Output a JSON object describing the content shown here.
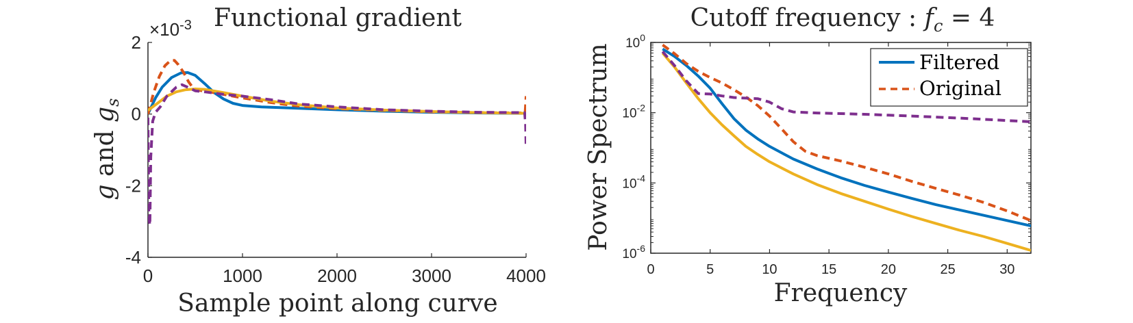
{
  "chart_data": [
    {
      "type": "line",
      "title": "Functional gradient",
      "xlabel": "Sample point along curve",
      "ylabel": "g and g_s",
      "y_exponent_label": "×10",
      "y_exponent_power": "-3",
      "xlim": [
        0,
        4000
      ],
      "ylim": [
        -4,
        2
      ],
      "x_ticks": [
        0,
        1000,
        2000,
        3000,
        4000
      ],
      "x_tick_labels": [
        "0",
        "1000",
        "2000",
        "3000",
        "4000"
      ],
      "y_ticks": [
        -4,
        -2,
        0,
        2
      ],
      "y_tick_labels": [
        "-4",
        "-2",
        "0",
        "2"
      ],
      "grid": false,
      "series": [
        {
          "color": "#0072BD",
          "style": "solid",
          "points": [
            [
              0,
              0.0
            ],
            [
              80,
              0.45
            ],
            [
              150,
              0.75
            ],
            [
              250,
              1.02
            ],
            [
              350,
              1.15
            ],
            [
              420,
              1.16
            ],
            [
              500,
              1.08
            ],
            [
              600,
              0.85
            ],
            [
              700,
              0.6
            ],
            [
              800,
              0.42
            ],
            [
              900,
              0.3
            ],
            [
              1000,
              0.24
            ],
            [
              1200,
              0.2
            ],
            [
              1500,
              0.17
            ],
            [
              2000,
              0.12
            ],
            [
              2500,
              0.08
            ],
            [
              3000,
              0.05
            ],
            [
              3500,
              0.03
            ],
            [
              4000,
              0.02
            ]
          ]
        },
        {
          "color": "#D95319",
          "style": "dashed",
          "points": [
            [
              0,
              0.0
            ],
            [
              60,
              0.6
            ],
            [
              120,
              1.05
            ],
            [
              180,
              1.35
            ],
            [
              240,
              1.5
            ],
            [
              280,
              1.5
            ],
            [
              320,
              1.38
            ],
            [
              380,
              1.15
            ],
            [
              430,
              0.9
            ],
            [
              480,
              0.72
            ],
            [
              550,
              0.66
            ],
            [
              650,
              0.62
            ],
            [
              800,
              0.55
            ],
            [
              1000,
              0.45
            ],
            [
              1300,
              0.32
            ],
            [
              1600,
              0.22
            ],
            [
              2000,
              0.15
            ],
            [
              2500,
              0.1
            ],
            [
              3000,
              0.06
            ],
            [
              3500,
              0.04
            ],
            [
              3990,
              0.03
            ],
            [
              4000,
              0.5
            ]
          ]
        },
        {
          "color": "#EDB120",
          "style": "solid",
          "points": [
            [
              0,
              0.1
            ],
            [
              100,
              0.3
            ],
            [
              200,
              0.5
            ],
            [
              300,
              0.62
            ],
            [
              400,
              0.68
            ],
            [
              500,
              0.7
            ],
            [
              600,
              0.69
            ],
            [
              800,
              0.6
            ],
            [
              1000,
              0.5
            ],
            [
              1300,
              0.36
            ],
            [
              1600,
              0.26
            ],
            [
              2000,
              0.17
            ],
            [
              2500,
              0.11
            ],
            [
              3000,
              0.07
            ],
            [
              3500,
              0.04
            ],
            [
              4000,
              0.02
            ]
          ]
        },
        {
          "color": "#7E2F8E",
          "style": "dashed",
          "points": [
            [
              0,
              -0.1
            ],
            [
              10,
              -2.9
            ],
            [
              20,
              -3.1
            ],
            [
              30,
              -1.2
            ],
            [
              50,
              -0.2
            ],
            [
              80,
              0.05
            ],
            [
              130,
              0.2
            ],
            [
              200,
              0.5
            ],
            [
              300,
              0.75
            ],
            [
              360,
              0.82
            ],
            [
              420,
              0.75
            ],
            [
              500,
              0.65
            ],
            [
              600,
              0.62
            ],
            [
              800,
              0.55
            ],
            [
              1000,
              0.5
            ],
            [
              1300,
              0.4
            ],
            [
              1600,
              0.28
            ],
            [
              2000,
              0.2
            ],
            [
              2500,
              0.12
            ],
            [
              3000,
              0.08
            ],
            [
              3500,
              0.05
            ],
            [
              3985,
              0.04
            ],
            [
              3995,
              -0.3
            ],
            [
              4000,
              -0.9
            ]
          ]
        }
      ]
    },
    {
      "type": "line",
      "title": "Cutoff frequency : f_c = 4",
      "title_text": "Cutoff frequency :",
      "title_math_f": "f",
      "title_math_sub": "c",
      "title_math_rest": " = 4",
      "xlabel": "Frequency",
      "ylabel": "Power Spectrum",
      "xlim": [
        0,
        32
      ],
      "ylim": [
        1e-06,
        1
      ],
      "y_scale": "log",
      "x_ticks": [
        0,
        5,
        10,
        15,
        20,
        25,
        30
      ],
      "x_tick_labels": [
        "0",
        "5",
        "10",
        "15",
        "20",
        "25",
        "30"
      ],
      "y_ticks": [
        -6,
        -4,
        -2,
        0
      ],
      "y_tick_base": "10",
      "y_tick_exponents": [
        "-6",
        "-4",
        "-2",
        "0"
      ],
      "grid": false,
      "legend_position": "top-right",
      "legend": [
        {
          "name": "Filtered",
          "color": "#0072BD",
          "style": "solid"
        },
        {
          "name": "Original",
          "color": "#D95319",
          "style": "dashed"
        }
      ],
      "series": [
        {
          "name": "Filtered",
          "color": "#0072BD",
          "style": "solid",
          "points": [
            [
              1,
              0.65
            ],
            [
              2,
              0.4
            ],
            [
              3,
              0.22
            ],
            [
              4,
              0.11
            ],
            [
              5,
              0.05
            ],
            [
              6,
              0.018
            ],
            [
              7,
              0.0068
            ],
            [
              8,
              0.0032
            ],
            [
              9,
              0.0018
            ],
            [
              10,
              0.0011
            ],
            [
              12,
              0.00048
            ],
            [
              14,
              0.00025
            ],
            [
              16,
              0.00014
            ],
            [
              18,
              8.5e-05
            ],
            [
              20,
              5.5e-05
            ],
            [
              22,
              3.6e-05
            ],
            [
              24,
              2.4e-05
            ],
            [
              26,
              1.7e-05
            ],
            [
              28,
              1.2e-05
            ],
            [
              30,
              8.5e-06
            ],
            [
              32,
              6e-06
            ]
          ]
        },
        {
          "name": "Original",
          "color": "#D95319",
          "style": "dashed",
          "points": [
            [
              1,
              0.85
            ],
            [
              2,
              0.48
            ],
            [
              3,
              0.25
            ],
            [
              4,
              0.15
            ],
            [
              5,
              0.1
            ],
            [
              6,
              0.07
            ],
            [
              7,
              0.045
            ],
            [
              8,
              0.028
            ],
            [
              9,
              0.016
            ],
            [
              10,
              0.008
            ],
            [
              11,
              0.0035
            ],
            [
              12,
              0.0015
            ],
            [
              13,
              0.0008
            ],
            [
              14,
              0.0006
            ],
            [
              16,
              0.00042
            ],
            [
              18,
              0.00028
            ],
            [
              20,
              0.00018
            ],
            [
              22,
              0.00011
            ],
            [
              24,
              7e-05
            ],
            [
              26,
              4.5e-05
            ],
            [
              28,
              2.8e-05
            ],
            [
              30,
              1.6e-05
            ],
            [
              32,
              8.5e-06
            ]
          ]
        },
        {
          "color": "#EDB120",
          "style": "solid",
          "points": [
            [
              1,
              0.5
            ],
            [
              2,
              0.2
            ],
            [
              3,
              0.07
            ],
            [
              4,
              0.025
            ],
            [
              5,
              0.01
            ],
            [
              6,
              0.0045
            ],
            [
              7,
              0.0022
            ],
            [
              8,
              0.0011
            ],
            [
              9,
              0.00065
            ],
            [
              10,
              0.0004
            ],
            [
              12,
              0.00018
            ],
            [
              14,
              9e-05
            ],
            [
              16,
              5e-05
            ],
            [
              18,
              3e-05
            ],
            [
              20,
              1.8e-05
            ],
            [
              22,
              1.1e-05
            ],
            [
              24,
              7e-06
            ],
            [
              26,
              4.5e-06
            ],
            [
              28,
              3e-06
            ],
            [
              30,
              1.9e-06
            ],
            [
              32,
              1.2e-06
            ]
          ]
        },
        {
          "color": "#7E2F8E",
          "style": "dashed",
          "points": [
            [
              1,
              0.55
            ],
            [
              2,
              0.22
            ],
            [
              3,
              0.08
            ],
            [
              4,
              0.035
            ],
            [
              5,
              0.034
            ],
            [
              6,
              0.03
            ],
            [
              7,
              0.027
            ],
            [
              8,
              0.026
            ],
            [
              9,
              0.025
            ],
            [
              10,
              0.02
            ],
            [
              11,
              0.013
            ],
            [
              12,
              0.0105
            ],
            [
              14,
              0.0098
            ],
            [
              16,
              0.0094
            ],
            [
              18,
              0.009
            ],
            [
              20,
              0.0085
            ],
            [
              22,
              0.008
            ],
            [
              24,
              0.0075
            ],
            [
              26,
              0.007
            ],
            [
              28,
              0.0065
            ],
            [
              30,
              0.006
            ],
            [
              32,
              0.0055
            ]
          ]
        }
      ]
    }
  ]
}
